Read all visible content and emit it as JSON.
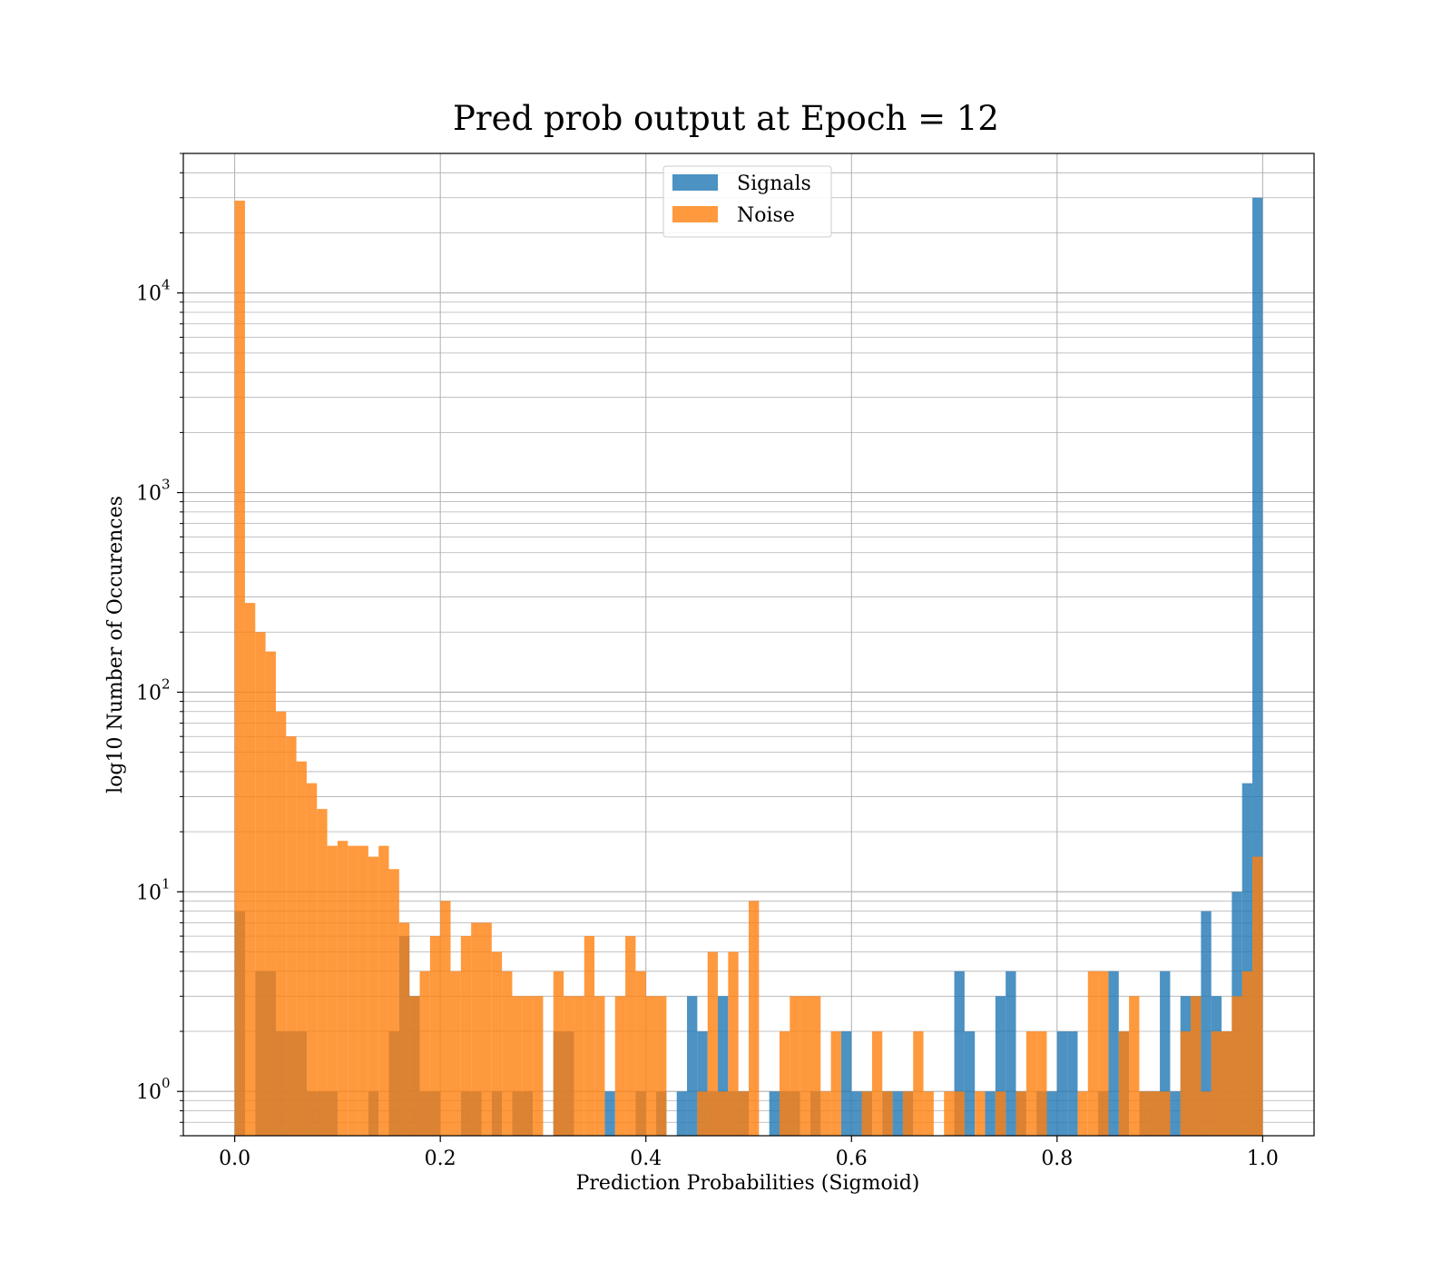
{
  "chart_data": {
    "type": "bar",
    "title": "Pred prob output at Epoch = 12",
    "xlabel": "Prediction Probabilities (Sigmoid)",
    "ylabel": "log10 Number of Occurences",
    "xlim": [
      -0.05,
      1.05
    ],
    "ylim": [
      0.6,
      50000
    ],
    "yscale": "log",
    "grid": true,
    "legend_position": "top-center",
    "bin_width": 0.01,
    "x_ticks": [
      {
        "value": 0.0,
        "label": "0.0"
      },
      {
        "value": 0.2,
        "label": "0.2"
      },
      {
        "value": 0.4,
        "label": "0.4"
      },
      {
        "value": 0.6,
        "label": "0.6"
      },
      {
        "value": 0.8,
        "label": "0.8"
      },
      {
        "value": 1.0,
        "label": "1.0"
      }
    ],
    "y_ticks": [
      {
        "value": 1,
        "base": "10",
        "exp": "0"
      },
      {
        "value": 10,
        "base": "10",
        "exp": "1"
      },
      {
        "value": 100,
        "base": "10",
        "exp": "2"
      },
      {
        "value": 1000,
        "base": "10",
        "exp": "3"
      },
      {
        "value": 10000,
        "base": "10",
        "exp": "4"
      }
    ],
    "series": [
      {
        "name": "Signals",
        "color": "#1f77b4",
        "bins": [
          [
            0.0,
            8
          ],
          [
            0.02,
            4
          ],
          [
            0.03,
            4
          ],
          [
            0.04,
            2
          ],
          [
            0.05,
            2
          ],
          [
            0.06,
            2
          ],
          [
            0.07,
            1
          ],
          [
            0.08,
            1
          ],
          [
            0.09,
            1
          ],
          [
            0.13,
            1
          ],
          [
            0.15,
            2
          ],
          [
            0.16,
            6
          ],
          [
            0.17,
            3
          ],
          [
            0.18,
            1
          ],
          [
            0.19,
            1
          ],
          [
            0.22,
            1
          ],
          [
            0.23,
            1
          ],
          [
            0.25,
            1
          ],
          [
            0.27,
            1
          ],
          [
            0.28,
            1
          ],
          [
            0.31,
            2
          ],
          [
            0.32,
            2
          ],
          [
            0.36,
            1
          ],
          [
            0.39,
            1
          ],
          [
            0.41,
            1
          ],
          [
            0.43,
            1
          ],
          [
            0.44,
            3
          ],
          [
            0.45,
            2
          ],
          [
            0.46,
            1
          ],
          [
            0.47,
            3
          ],
          [
            0.48,
            1
          ],
          [
            0.49,
            1
          ],
          [
            0.52,
            1
          ],
          [
            0.53,
            1
          ],
          [
            0.54,
            1
          ],
          [
            0.56,
            1
          ],
          [
            0.59,
            2
          ],
          [
            0.6,
            1
          ],
          [
            0.61,
            1
          ],
          [
            0.63,
            1
          ],
          [
            0.64,
            1
          ],
          [
            0.65,
            1
          ],
          [
            0.7,
            4
          ],
          [
            0.71,
            2
          ],
          [
            0.73,
            1
          ],
          [
            0.74,
            3
          ],
          [
            0.75,
            4
          ],
          [
            0.76,
            1
          ],
          [
            0.78,
            1
          ],
          [
            0.79,
            1
          ],
          [
            0.8,
            2
          ],
          [
            0.81,
            2
          ],
          [
            0.84,
            1
          ],
          [
            0.85,
            4
          ],
          [
            0.86,
            2
          ],
          [
            0.88,
            1
          ],
          [
            0.89,
            1
          ],
          [
            0.9,
            4
          ],
          [
            0.91,
            1
          ],
          [
            0.92,
            3
          ],
          [
            0.93,
            3
          ],
          [
            0.94,
            8
          ],
          [
            0.95,
            3
          ],
          [
            0.96,
            2
          ],
          [
            0.97,
            10
          ],
          [
            0.98,
            35
          ],
          [
            0.99,
            30000
          ]
        ]
      },
      {
        "name": "Noise",
        "color": "#ff7f0e",
        "bins": [
          [
            0.0,
            29000
          ],
          [
            0.01,
            280
          ],
          [
            0.02,
            200
          ],
          [
            0.03,
            160
          ],
          [
            0.04,
            80
          ],
          [
            0.05,
            60
          ],
          [
            0.06,
            45
          ],
          [
            0.07,
            35
          ],
          [
            0.08,
            26
          ],
          [
            0.09,
            17
          ],
          [
            0.1,
            18
          ],
          [
            0.11,
            17
          ],
          [
            0.12,
            17
          ],
          [
            0.13,
            15
          ],
          [
            0.14,
            17
          ],
          [
            0.15,
            13
          ],
          [
            0.16,
            7
          ],
          [
            0.17,
            3
          ],
          [
            0.18,
            4
          ],
          [
            0.19,
            6
          ],
          [
            0.2,
            9
          ],
          [
            0.21,
            4
          ],
          [
            0.22,
            6
          ],
          [
            0.23,
            7
          ],
          [
            0.24,
            7
          ],
          [
            0.25,
            5
          ],
          [
            0.26,
            4
          ],
          [
            0.27,
            3
          ],
          [
            0.28,
            3
          ],
          [
            0.29,
            3
          ],
          [
            0.31,
            4
          ],
          [
            0.32,
            3
          ],
          [
            0.33,
            3
          ],
          [
            0.34,
            6
          ],
          [
            0.35,
            3
          ],
          [
            0.37,
            3
          ],
          [
            0.38,
            6
          ],
          [
            0.39,
            4
          ],
          [
            0.4,
            3
          ],
          [
            0.41,
            3
          ],
          [
            0.45,
            1
          ],
          [
            0.46,
            5
          ],
          [
            0.47,
            1
          ],
          [
            0.48,
            5
          ],
          [
            0.49,
            1
          ],
          [
            0.5,
            9
          ],
          [
            0.53,
            2
          ],
          [
            0.54,
            3
          ],
          [
            0.55,
            3
          ],
          [
            0.56,
            3
          ],
          [
            0.57,
            1
          ],
          [
            0.58,
            2
          ],
          [
            0.61,
            1
          ],
          [
            0.62,
            2
          ],
          [
            0.63,
            1
          ],
          [
            0.65,
            1
          ],
          [
            0.66,
            2
          ],
          [
            0.67,
            1
          ],
          [
            0.69,
            1
          ],
          [
            0.7,
            1
          ],
          [
            0.72,
            1
          ],
          [
            0.74,
            1
          ],
          [
            0.76,
            1
          ],
          [
            0.77,
            2
          ],
          [
            0.78,
            2
          ],
          [
            0.82,
            1
          ],
          [
            0.83,
            4
          ],
          [
            0.84,
            4
          ],
          [
            0.86,
            2
          ],
          [
            0.87,
            3
          ],
          [
            0.88,
            1
          ],
          [
            0.89,
            1
          ],
          [
            0.9,
            1
          ],
          [
            0.92,
            2
          ],
          [
            0.93,
            3
          ],
          [
            0.94,
            1
          ],
          [
            0.95,
            2
          ],
          [
            0.96,
            2
          ],
          [
            0.97,
            3
          ],
          [
            0.98,
            4
          ],
          [
            0.99,
            15
          ]
        ]
      }
    ]
  }
}
